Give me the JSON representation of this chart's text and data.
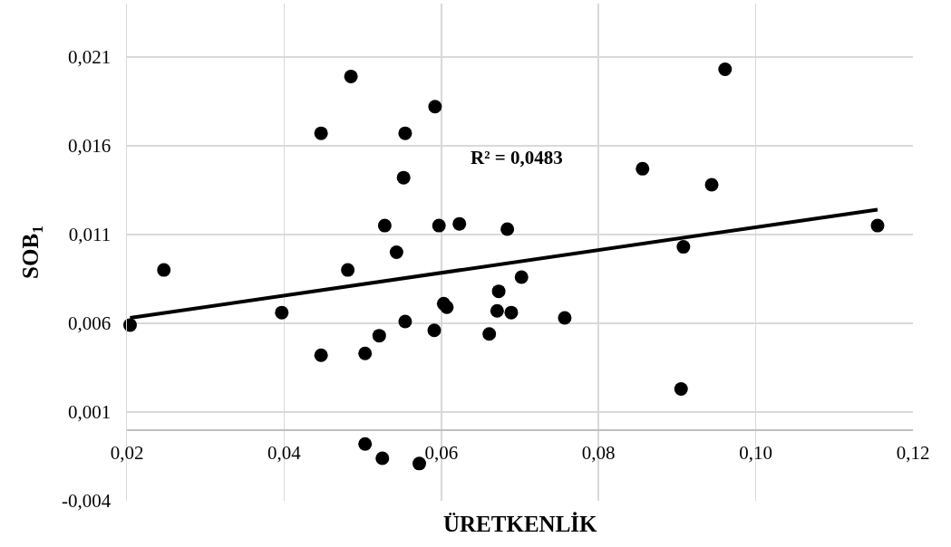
{
  "chart_data": {
    "type": "scatter",
    "xlabel": "ÜRETKENLİK",
    "ylabel": "SOB$_{1}$",
    "annotations": [
      "R² = 0,0483"
    ],
    "xlim": [
      0.02,
      0.12
    ],
    "xticks": [
      {
        "value": 0.02,
        "label": "0,02"
      },
      {
        "value": 0.04,
        "label": "0,04"
      },
      {
        "value": 0.06,
        "label": "0,06"
      },
      {
        "value": 0.08,
        "label": "0,08"
      },
      {
        "value": 0.1,
        "label": "0,10"
      },
      {
        "value": 0.12,
        "label": "0,12"
      }
    ],
    "ylim": [
      -0.004,
      0.024
    ],
    "yticks": [
      {
        "value": -0.004,
        "label": "-0,004"
      },
      {
        "value": 0.001,
        "label": "0,001"
      },
      {
        "value": 0.006,
        "label": "0,006"
      },
      {
        "value": 0.011,
        "label": "0,011"
      },
      {
        "value": 0.016,
        "label": "0,016"
      },
      {
        "value": 0.021,
        "label": "0,021"
      }
    ],
    "grid": true,
    "marker": "circle",
    "series": [
      {
        "color": "#000000",
        "x": [
          0.0204,
          0.0247,
          0.0397,
          0.0447,
          0.0447,
          0.0485,
          0.0481,
          0.0528,
          0.0543,
          0.0552,
          0.0554,
          0.0592,
          0.0597,
          0.0623,
          0.0684,
          0.0856,
          0.0944,
          0.0961,
          0.0908,
          0.1155,
          0.0503,
          0.0521,
          0.0554,
          0.0591,
          0.0603,
          0.0607,
          0.0503,
          0.0525,
          0.0572,
          0.0702,
          0.0673,
          0.0671,
          0.0689,
          0.0757,
          0.0661,
          0.0905
        ],
        "values": [
          0.0059,
          0.009,
          0.0066,
          0.0042,
          0.0167,
          0.0199,
          0.009,
          0.0115,
          0.01,
          0.0142,
          0.0167,
          0.0182,
          0.0115,
          0.0116,
          0.0113,
          0.0147,
          0.0138,
          0.0203,
          0.0103,
          0.0115,
          0.0043,
          0.0053,
          0.0061,
          0.0056,
          0.0071,
          0.0069,
          -0.0008,
          -0.0016,
          -0.0019,
          0.0086,
          0.0078,
          0.0067,
          0.0066,
          0.0063,
          0.0054,
          0.0023
        ]
      },
      {
        "type": "line",
        "color": "#000000",
        "line_style": "solid",
        "marker": "none",
        "x": [
          0.0204,
          0.1155
        ],
        "values": [
          0.0063,
          0.0124
        ]
      }
    ]
  }
}
